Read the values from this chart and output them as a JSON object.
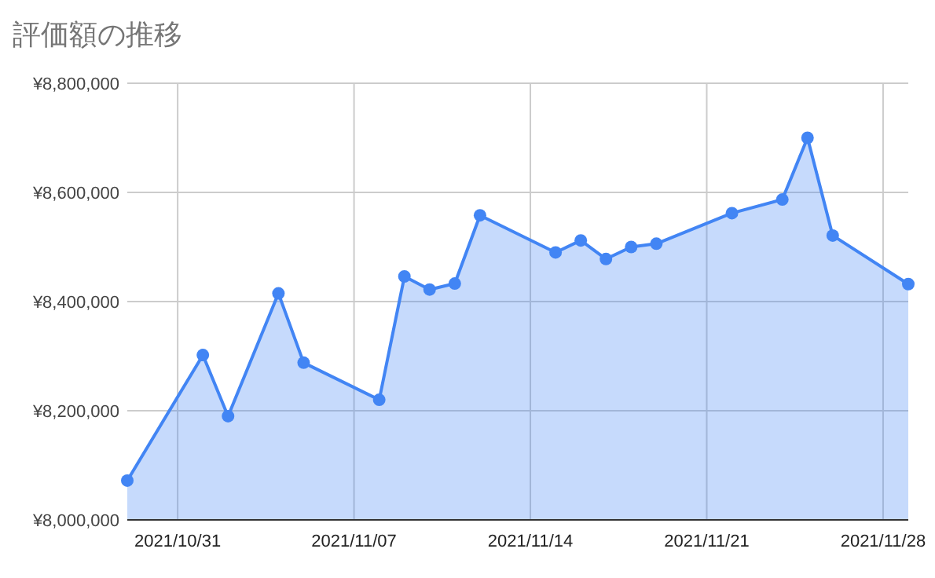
{
  "chart_data": {
    "type": "area",
    "title": "評価額の推移",
    "x": [
      "2021-10-29",
      "2021-11-01",
      "2021-11-02",
      "2021-11-04",
      "2021-11-05",
      "2021-11-08",
      "2021-11-09",
      "2021-11-10",
      "2021-11-11",
      "2021-11-12",
      "2021-11-15",
      "2021-11-16",
      "2021-11-17",
      "2021-11-18",
      "2021-11-19",
      "2021-11-22",
      "2021-11-24",
      "2021-11-25",
      "2021-11-26",
      "2021-11-29"
    ],
    "series": [
      {
        "color": "#4285f4",
        "values": [
          8072000,
          8302000,
          8190000,
          8415000,
          8288000,
          8220000,
          8446000,
          8422000,
          8433000,
          8558000,
          8490000,
          8512000,
          8478000,
          8500000,
          8506000,
          8562000,
          8587000,
          8700000,
          8521000,
          8432000
        ]
      }
    ],
    "xlim": [
      "2021-10-29",
      "2021-11-29"
    ],
    "xticks": [
      {
        "value": "2021-10-31",
        "label": "2021/10/31"
      },
      {
        "value": "2021-11-07",
        "label": "2021/11/07"
      },
      {
        "value": "2021-11-14",
        "label": "2021/11/14"
      },
      {
        "value": "2021-11-21",
        "label": "2021/11/21"
      },
      {
        "value": "2021-11-28",
        "label": "2021/11/28"
      }
    ],
    "ylim": [
      8000000,
      8800000
    ],
    "yticks": [
      {
        "value": 8000000,
        "label": "¥8,000,000"
      },
      {
        "value": 8200000,
        "label": "¥8,200,000"
      },
      {
        "value": 8400000,
        "label": "¥8,400,000"
      },
      {
        "value": 8600000,
        "label": "¥8,600,000"
      },
      {
        "value": 8800000,
        "label": "¥8,800,000"
      }
    ],
    "grid": true,
    "marker": "circle",
    "line_style": "solid"
  }
}
